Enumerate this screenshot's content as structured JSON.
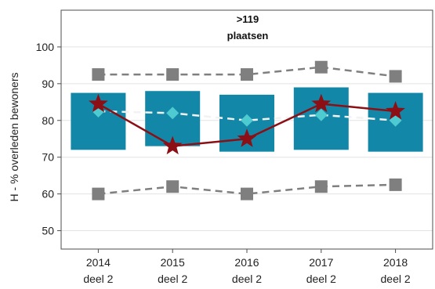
{
  "chart_data": {
    "type": "box",
    "title": ">119",
    "subtitle": "plaatsen",
    "ylabel": "H - % overleden bewoners",
    "xlabel": "",
    "ylim": [
      45,
      110
    ],
    "yticks": [
      50,
      60,
      70,
      80,
      90,
      100
    ],
    "grid": true,
    "categories": [
      [
        "2014",
        "deel 2"
      ],
      [
        "2015",
        "deel 2"
      ],
      [
        "2016",
        "deel 2"
      ],
      [
        "2017",
        "deel 2"
      ],
      [
        "2018",
        "deel 2"
      ]
    ],
    "series": [
      {
        "role": "upper",
        "style": "gray-square-dashed",
        "values": [
          92.5,
          92.5,
          92.5,
          94.5,
          92
        ]
      },
      {
        "role": "box-upper",
        "values": [
          87.5,
          88,
          87,
          89,
          87.5
        ]
      },
      {
        "role": "box-lower",
        "values": [
          72,
          73,
          71.5,
          72,
          71.5
        ]
      },
      {
        "role": "mean",
        "style": "cyan-diamond-dashed",
        "values": [
          82.5,
          82,
          80,
          81.5,
          80
        ]
      },
      {
        "role": "value",
        "style": "darkred-star-solid",
        "values": [
          84.5,
          73,
          75,
          84.5,
          82.5
        ]
      },
      {
        "role": "lower",
        "style": "gray-square-dashed",
        "values": [
          60,
          62,
          60,
          62,
          62.5
        ]
      }
    ],
    "colors": {
      "box": "#1387a8",
      "mean": "#4ecbd0",
      "star": "#8b0f14",
      "gray": "#7f7f7f",
      "grid": "#e3e3e3",
      "axis": "#4d4d4d"
    }
  }
}
